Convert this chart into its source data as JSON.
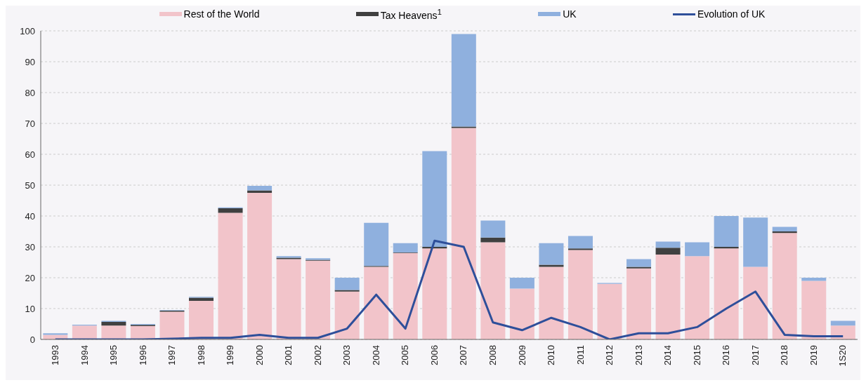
{
  "chart_data": {
    "type": "bar",
    "stacked": true,
    "categories": [
      "1993",
      "1994",
      "1995",
      "1996",
      "1997",
      "1998",
      "1999",
      "2000",
      "2001",
      "2002",
      "2003",
      "2004",
      "2005",
      "2006",
      "2007",
      "2008",
      "2009",
      "2010",
      "2011",
      "2012",
      "2013",
      "2014",
      "2015",
      "2016",
      "2017",
      "2018",
      "2019",
      "1S20"
    ],
    "series": [
      {
        "name": "Rest of the World",
        "color": "#f2c4ca",
        "values": [
          1.5,
          4.5,
          4.5,
          4.3,
          9,
          12.5,
          41,
          47.5,
          26,
          25.5,
          15.5,
          23.5,
          28,
          29.5,
          68.5,
          31.5,
          16.5,
          23.5,
          29,
          18,
          23,
          27.5,
          27,
          29.5,
          23.5,
          34.5,
          19,
          4.5
        ]
      },
      {
        "name": "Tax Heavens$^{1}$",
        "color": "#404040",
        "values": [
          0,
          0,
          1.2,
          0.4,
          0.3,
          1,
          1.5,
          0.8,
          0.5,
          0.3,
          0.5,
          0.3,
          0.2,
          0.5,
          0.5,
          1.5,
          0,
          0.7,
          0.5,
          0,
          0.5,
          2.2,
          0,
          0.5,
          0,
          0.5,
          0,
          0
        ]
      },
      {
        "name": "UK",
        "color": "#8fb0de",
        "values": [
          0.5,
          0.3,
          0.3,
          0.3,
          0.2,
          0.3,
          0.3,
          1.5,
          0.5,
          0.5,
          4,
          14,
          3,
          31,
          30,
          5.5,
          3.5,
          7,
          4,
          0.3,
          2.5,
          2,
          4.5,
          10,
          16,
          1.5,
          1,
          1.5
        ]
      },
      {
        "name": "Evolution of UK",
        "type": "line",
        "color": "#2e4f9a",
        "values": [
          0,
          0,
          0,
          0,
          0.2,
          0.5,
          0.5,
          1.5,
          0.5,
          0.5,
          3.5,
          14.5,
          3.5,
          32,
          30,
          5.5,
          3,
          7,
          4,
          0,
          2,
          2,
          4,
          10,
          15.5,
          1.5,
          1,
          1
        ]
      }
    ],
    "ylim": [
      0,
      100
    ],
    "yticks": [
      0,
      10,
      20,
      30,
      40,
      50,
      60,
      70,
      80,
      90,
      100
    ],
    "grid": "y",
    "legend": "top",
    "marker": "none"
  }
}
